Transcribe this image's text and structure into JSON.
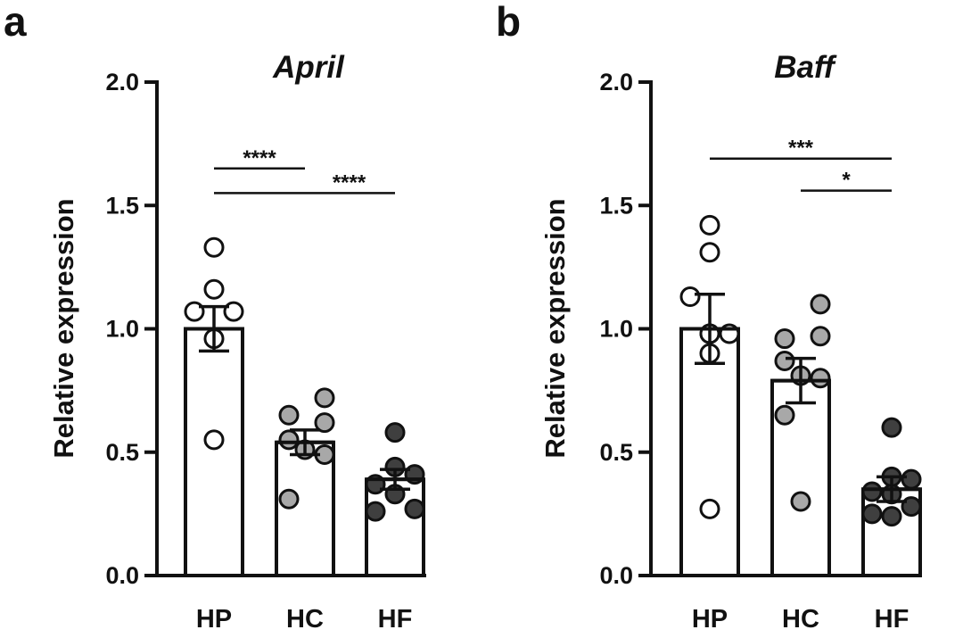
{
  "chart_data": [
    {
      "type": "bar",
      "panel": "a",
      "title": "April",
      "xlabel": "",
      "ylabel": "Relative expression",
      "ylim": [
        0,
        2.0
      ],
      "yticks": [
        "0.0",
        "0.5",
        "1.0",
        "1.5",
        "2.0"
      ],
      "categories": [
        "HP",
        "HC",
        "HF"
      ],
      "values": [
        1.0,
        0.54,
        0.39
      ],
      "sem": [
        0.09,
        0.05,
        0.04
      ],
      "points": [
        [
          1.33,
          1.16,
          1.07,
          1.07,
          0.96,
          0.55
        ],
        [
          0.72,
          0.65,
          0.62,
          0.55,
          0.51,
          0.49,
          0.31
        ],
        [
          0.58,
          0.44,
          0.41,
          0.37,
          0.33,
          0.27,
          0.26
        ]
      ],
      "point_colors": [
        "#ffffff",
        "#a8a8a8",
        "#3f3f3f"
      ],
      "significance": [
        {
          "from": "HP",
          "to": "HC",
          "label": "****",
          "y": 1.65
        },
        {
          "from": "HP",
          "to": "HF",
          "label": "****",
          "y": 1.55
        }
      ]
    },
    {
      "type": "bar",
      "panel": "b",
      "title": "Baff",
      "xlabel": "",
      "ylabel": "Relative expression",
      "ylim": [
        0,
        2.0
      ],
      "yticks": [
        "0.0",
        "0.5",
        "1.0",
        "1.5",
        "2.0"
      ],
      "categories": [
        "HP",
        "HC",
        "HF"
      ],
      "values": [
        1.0,
        0.79,
        0.35
      ],
      "sem": [
        0.14,
        0.09,
        0.05
      ],
      "points": [
        [
          1.42,
          1.31,
          1.13,
          0.98,
          0.98,
          0.98,
          0.9,
          0.27
        ],
        [
          1.1,
          0.96,
          0.97,
          0.87,
          0.81,
          0.8,
          0.65,
          0.3
        ],
        [
          0.6,
          0.4,
          0.39,
          0.34,
          0.33,
          0.28,
          0.25,
          0.24
        ]
      ],
      "point_colors": [
        "#ffffff",
        "#a8a8a8",
        "#3f3f3f"
      ],
      "significance": [
        {
          "from": "HP",
          "to": "HF",
          "label": "***",
          "y": 1.69
        },
        {
          "from": "HC",
          "to": "HF",
          "label": "*",
          "y": 1.56
        }
      ]
    }
  ]
}
